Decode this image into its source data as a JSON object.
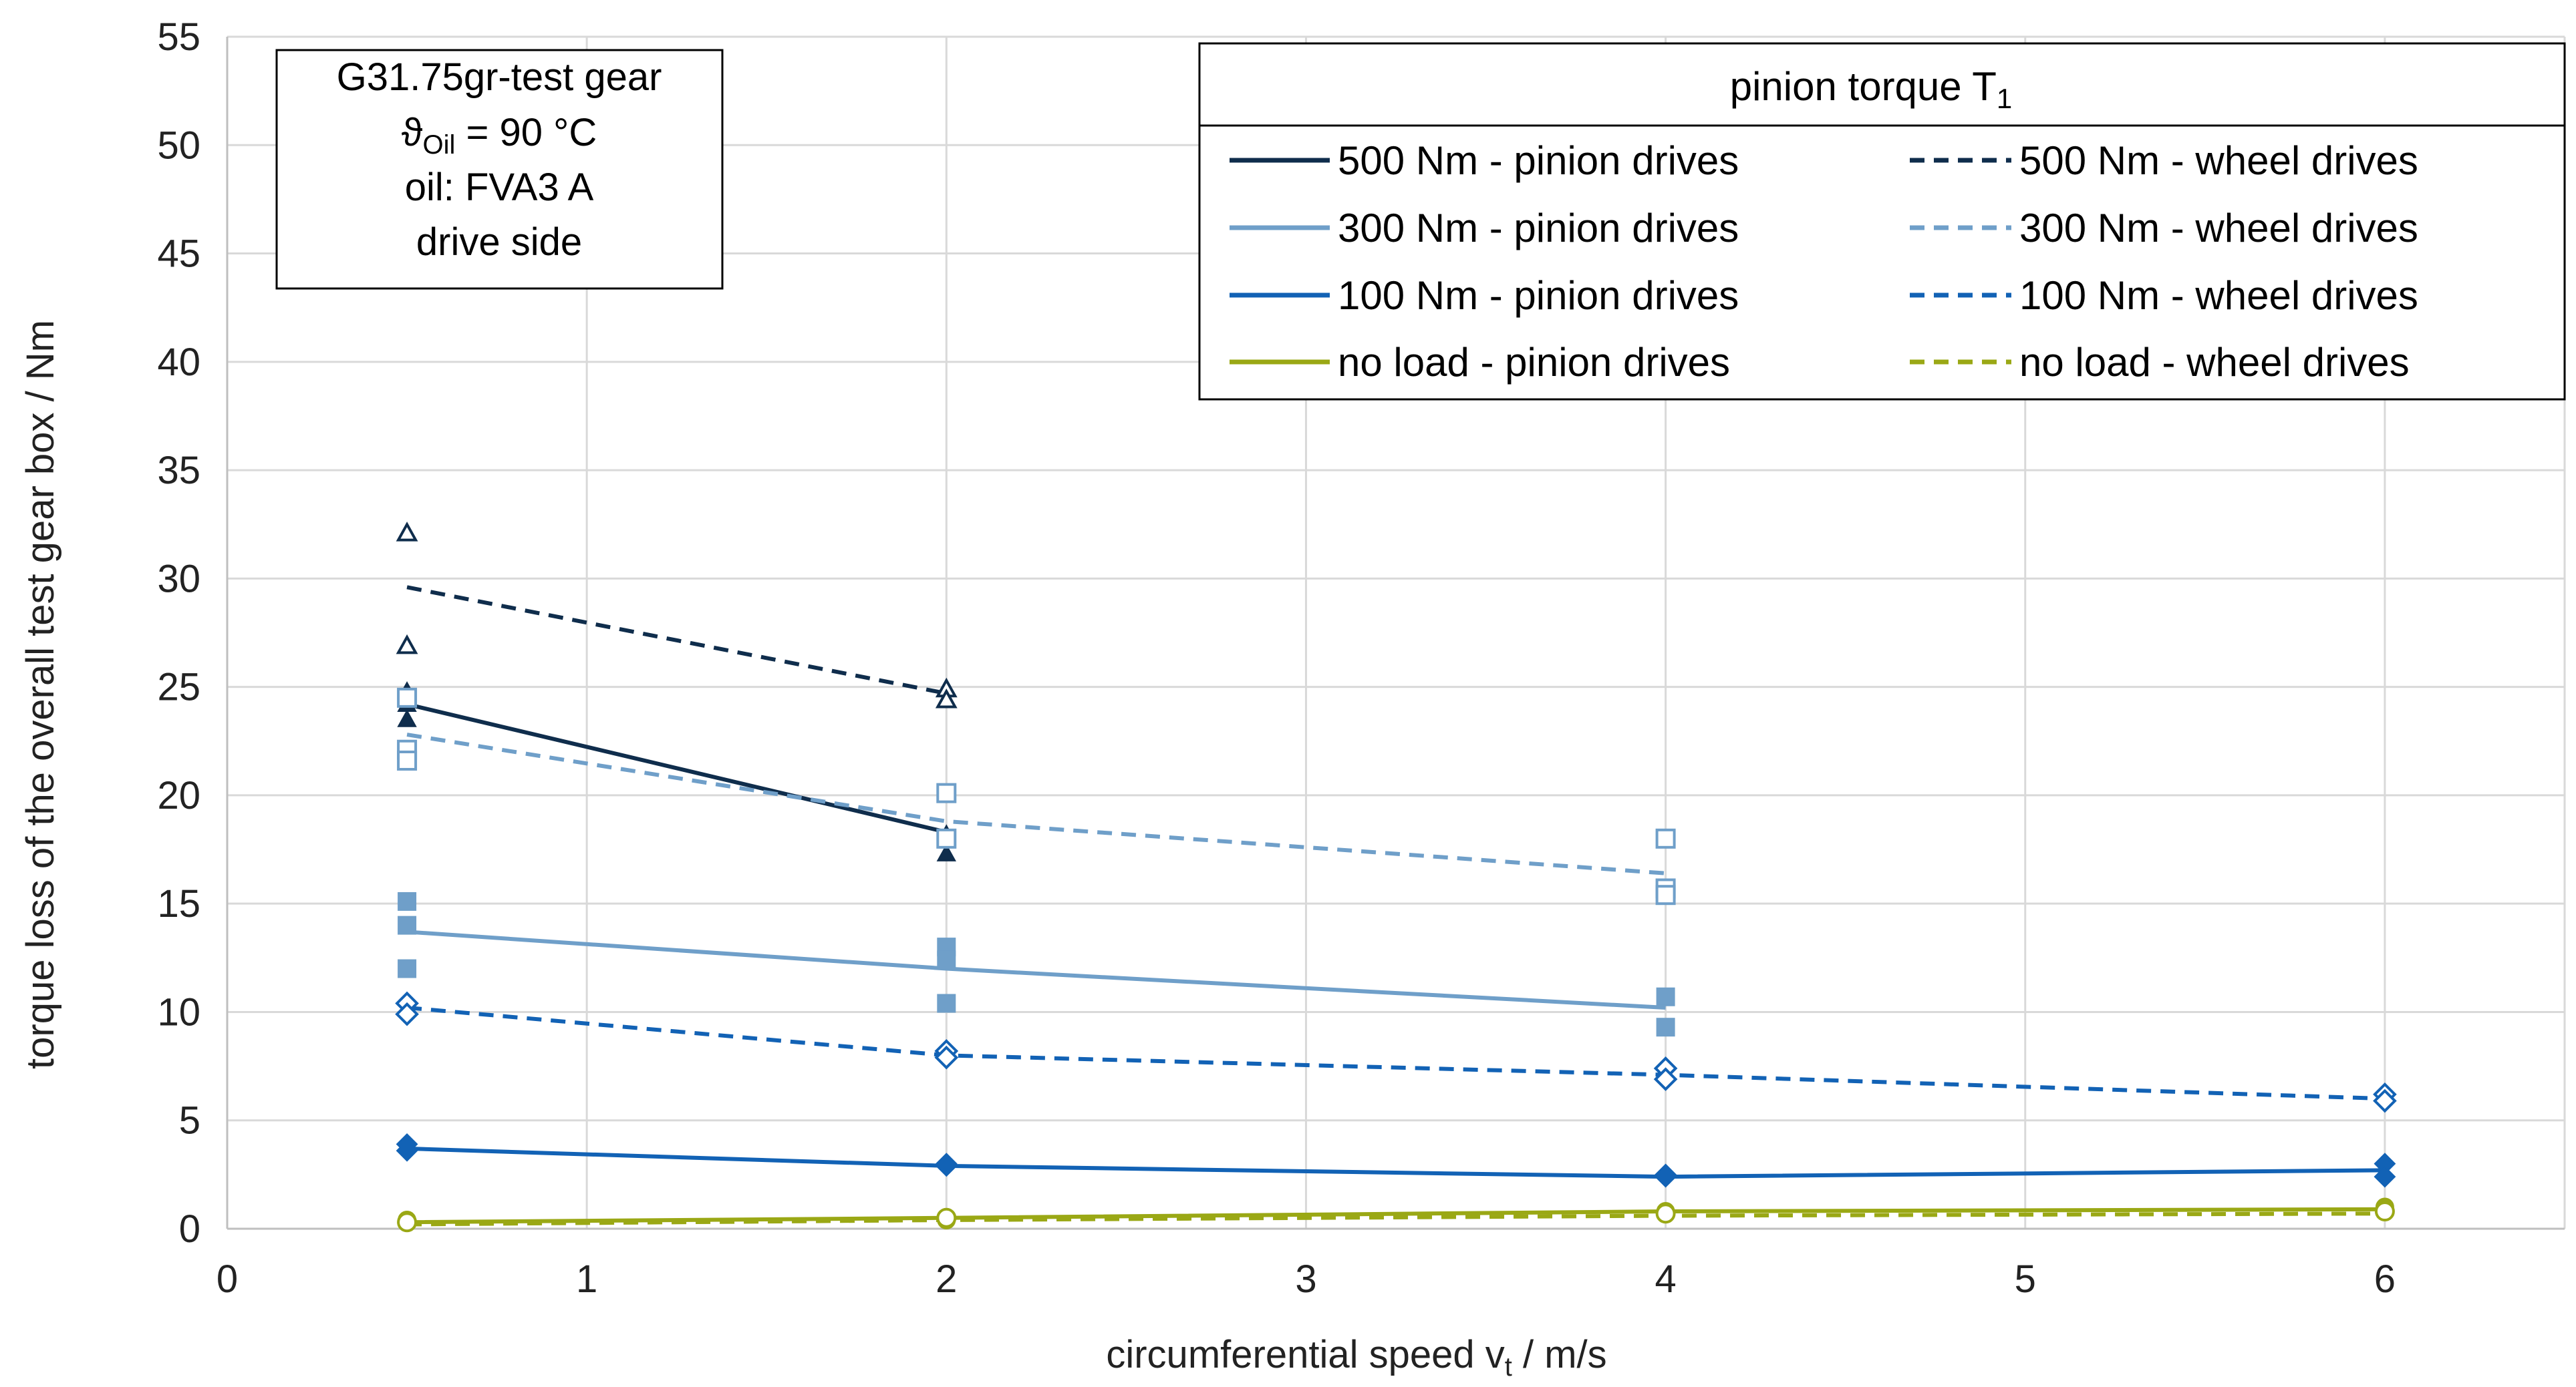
{
  "chart_data": {
    "type": "scatter",
    "title": "",
    "xlabel": "circumferential speed v",
    "xlabel_sub": "t",
    "xlabel_suffix": " / m/s",
    "ylabel": "torque loss of the overall test gear box / Nm",
    "xlim": [
      0,
      6.5
    ],
    "ylim": [
      0,
      55
    ],
    "xticks": [
      "0",
      "1",
      "2",
      "3",
      "4",
      "5",
      "6"
    ],
    "yticks": [
      "0",
      "5",
      "10",
      "15",
      "20",
      "25",
      "30",
      "35",
      "40",
      "45",
      "50",
      "55"
    ],
    "grid": true,
    "colors": {
      "t500": "#0f2d4c",
      "t300": "#6f9fc9",
      "t100": "#1262b5",
      "noload": "#9aa815"
    },
    "info_box": {
      "line1": "G31.75gr-test gear",
      "line2_symbol": "ϑ",
      "line2_sub": "Oil",
      "line2_rest": " = 90 °C",
      "line3": "oil: FVA3 A",
      "line4": "drive side"
    },
    "legend": {
      "title": "pinion torque T",
      "title_sub": "1",
      "position": "top-right",
      "entries": [
        {
          "label": "500 Nm - pinion drives",
          "color_key": "t500",
          "dashed": false
        },
        {
          "label": "500 Nm - wheel drives",
          "color_key": "t500",
          "dashed": true
        },
        {
          "label": "300 Nm - pinion drives",
          "color_key": "t300",
          "dashed": false
        },
        {
          "label": "300 Nm - wheel drives",
          "color_key": "t300",
          "dashed": true
        },
        {
          "label": "100 Nm - pinion drives",
          "color_key": "t100",
          "dashed": false
        },
        {
          "label": "100 Nm - wheel drives",
          "color_key": "t100",
          "dashed": true
        },
        {
          "label": "no load - pinion drives",
          "color_key": "noload",
          "dashed": false
        },
        {
          "label": "no load - wheel drives",
          "color_key": "noload",
          "dashed": true
        }
      ]
    },
    "series": [
      {
        "name": "500 Nm - pinion drives",
        "color_key": "t500",
        "dashed": false,
        "marker": "triangle",
        "filled": true,
        "line": {
          "x": [
            0.5,
            2
          ],
          "y": [
            24.2,
            18.3
          ]
        },
        "points": {
          "x": [
            0.5,
            0.5,
            0.5,
            2,
            2,
            2
          ],
          "y": [
            24.8,
            24.2,
            23.5,
            20.1,
            18.2,
            17.3
          ]
        }
      },
      {
        "name": "500 Nm - wheel drives",
        "color_key": "t500",
        "dashed": true,
        "marker": "triangle",
        "filled": false,
        "line": {
          "x": [
            0.5,
            2
          ],
          "y": [
            29.6,
            24.7
          ]
        },
        "points": {
          "x": [
            0.5,
            0.5,
            2,
            2
          ],
          "y": [
            32.1,
            26.9,
            24.9,
            24.4
          ]
        }
      },
      {
        "name": "300 Nm - pinion drives",
        "color_key": "t300",
        "dashed": false,
        "marker": "square",
        "filled": true,
        "line": {
          "x": [
            0.5,
            2,
            4
          ],
          "y": [
            13.7,
            12.0,
            10.2
          ]
        },
        "points": {
          "x": [
            0.5,
            0.5,
            0.5,
            2,
            2,
            2,
            4,
            4
          ],
          "y": [
            15.1,
            14.0,
            12.0,
            13.0,
            12.4,
            10.4,
            10.7,
            9.3
          ]
        }
      },
      {
        "name": "300 Nm - wheel drives",
        "color_key": "t300",
        "dashed": true,
        "marker": "square",
        "filled": false,
        "line": {
          "x": [
            0.5,
            2,
            4
          ],
          "y": [
            22.8,
            18.8,
            16.4
          ]
        },
        "points": {
          "x": [
            0.5,
            0.5,
            0.5,
            2,
            2,
            4,
            4,
            4
          ],
          "y": [
            24.5,
            22.1,
            21.6,
            20.1,
            18.0,
            18.0,
            15.7,
            15.4
          ]
        }
      },
      {
        "name": "100 Nm - pinion drives",
        "color_key": "t100",
        "dashed": false,
        "marker": "diamond",
        "filled": true,
        "line": {
          "x": [
            0.5,
            2,
            4,
            6
          ],
          "y": [
            3.7,
            2.9,
            2.4,
            2.7
          ]
        },
        "points": {
          "x": [
            0.5,
            0.5,
            2,
            2,
            4,
            4,
            6,
            6
          ],
          "y": [
            3.9,
            3.6,
            3.0,
            2.9,
            2.5,
            2.4,
            3.0,
            2.4
          ]
        }
      },
      {
        "name": "100 Nm - wheel drives",
        "color_key": "t100",
        "dashed": true,
        "marker": "diamond",
        "filled": false,
        "line": {
          "x": [
            0.5,
            2,
            4,
            6
          ],
          "y": [
            10.2,
            8.0,
            7.1,
            6.0
          ]
        },
        "points": {
          "x": [
            0.5,
            0.5,
            2,
            2,
            4,
            4,
            6,
            6
          ],
          "y": [
            10.4,
            9.9,
            8.2,
            7.9,
            7.4,
            6.9,
            6.2,
            5.9
          ]
        }
      },
      {
        "name": "no load - pinion drives",
        "color_key": "noload",
        "dashed": false,
        "marker": "circle",
        "filled": true,
        "line": {
          "x": [
            0.5,
            2,
            4,
            6
          ],
          "y": [
            0.3,
            0.5,
            0.8,
            0.9
          ]
        },
        "points": {
          "x": [
            0.5,
            0.5,
            2,
            2,
            4,
            4,
            6,
            6
          ],
          "y": [
            0.4,
            0.3,
            0.5,
            0.4,
            0.8,
            0.7,
            1.0,
            0.8
          ]
        }
      },
      {
        "name": "no load - wheel drives",
        "color_key": "noload",
        "dashed": true,
        "marker": "circle",
        "filled": false,
        "line": {
          "x": [
            0.5,
            2,
            4,
            6
          ],
          "y": [
            0.2,
            0.4,
            0.6,
            0.7
          ]
        },
        "points": {
          "x": [
            0.5,
            2,
            4,
            6
          ],
          "y": [
            0.3,
            0.5,
            0.7,
            0.8
          ]
        }
      }
    ]
  }
}
